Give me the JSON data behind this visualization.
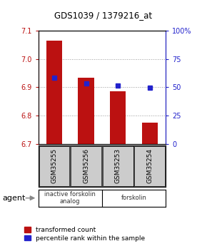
{
  "title": "GDS1039 / 1379216_at",
  "samples": [
    "GSM35255",
    "GSM35256",
    "GSM35253",
    "GSM35254"
  ],
  "bar_values": [
    7.065,
    6.935,
    6.885,
    6.775
  ],
  "percentile_values": [
    58.5,
    53.5,
    51.5,
    49.5
  ],
  "bar_color": "#bb1111",
  "dot_color": "#2222cc",
  "ylim_left": [
    6.7,
    7.1
  ],
  "ylim_right": [
    0,
    100
  ],
  "yticks_left": [
    6.7,
    6.8,
    6.9,
    7.0,
    7.1
  ],
  "yticks_right": [
    0,
    25,
    50,
    75,
    100
  ],
  "ytick_labels_right": [
    "0",
    "25",
    "50",
    "75",
    "100%"
  ],
  "groups": [
    {
      "label": "inactive forskolin\nanalog",
      "samples": [
        0,
        1
      ],
      "color": "#cceecc"
    },
    {
      "label": "forskolin",
      "samples": [
        2,
        3
      ],
      "color": "#44cc44"
    }
  ],
  "legend_items": [
    {
      "label": "transformed count",
      "color": "#bb1111"
    },
    {
      "label": "percentile rank within the sample",
      "color": "#2222cc"
    }
  ],
  "agent_label": "agent",
  "bar_width": 0.5,
  "grid_color": "#999999"
}
